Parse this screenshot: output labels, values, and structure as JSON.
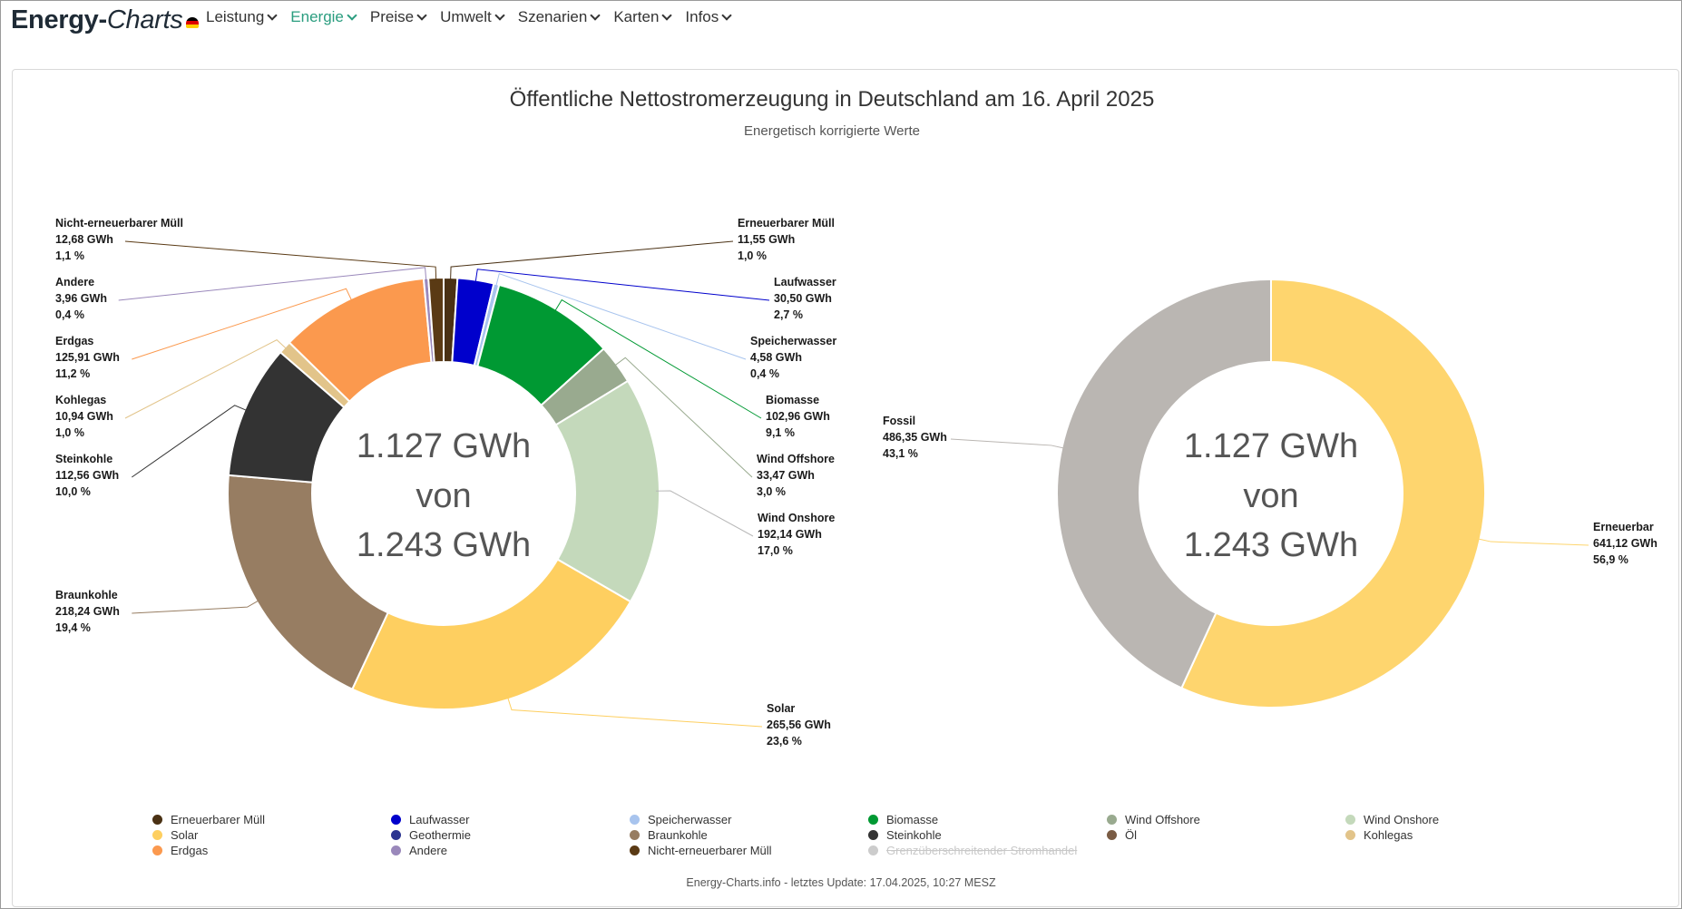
{
  "nav": {
    "brand_main": "Energy-",
    "brand_italic": "Charts",
    "items": [
      {
        "label": "Leistung",
        "active": false
      },
      {
        "label": "Energie",
        "active": true
      },
      {
        "label": "Preise",
        "active": false
      },
      {
        "label": "Umwelt",
        "active": false
      },
      {
        "label": "Szenarien",
        "active": false
      },
      {
        "label": "Karten",
        "active": false
      },
      {
        "label": "Infos",
        "active": false
      }
    ]
  },
  "footer": "Energy-Charts.info - letztes Update: 17.04.2025, 10:27 MESZ",
  "chart_data": [
    {
      "type": "pie",
      "title": "Öffentliche Nettostromerzeugung in Deutschland am 16. April 2025",
      "subtitle": "Energetisch korrigierte Werte",
      "center": [
        "1.127 GWh",
        "von",
        "1.243 GWh"
      ],
      "unit": "GWh",
      "slices": [
        {
          "name": "Erneuerbarer Müll",
          "value": 11.55,
          "value_label": "11,55 GWh",
          "percent_label": "1,0 %",
          "color": "#4a3114"
        },
        {
          "name": "Laufwasser",
          "value": 30.5,
          "value_label": "30,50 GWh",
          "percent_label": "2,7 %",
          "color": "#0000cc"
        },
        {
          "name": "Speicherwasser",
          "value": 4.58,
          "value_label": "4,58 GWh",
          "percent_label": "0,4 %",
          "color": "#a8c4ee"
        },
        {
          "name": "Biomasse",
          "value": 102.96,
          "value_label": "102,96 GWh",
          "percent_label": "9,1 %",
          "color": "#009933"
        },
        {
          "name": "Wind Offshore",
          "value": 33.47,
          "value_label": "33,47 GWh",
          "percent_label": "3,0 %",
          "color": "#99aa8f"
        },
        {
          "name": "Wind Onshore",
          "value": 192.14,
          "value_label": "192,14 GWh",
          "percent_label": "17,0 %",
          "color": "#c4d9bb"
        },
        {
          "name": "Solar",
          "value": 265.56,
          "value_label": "265,56 GWh",
          "percent_label": "23,6 %",
          "color": "#fecf60"
        },
        {
          "name": "Braunkohle",
          "value": 218.24,
          "value_label": "218,24 GWh",
          "percent_label": "19,4 %",
          "color": "#977d62"
        },
        {
          "name": "Steinkohle",
          "value": 112.56,
          "value_label": "112,56 GWh",
          "percent_label": "10,0 %",
          "color": "#333333"
        },
        {
          "name": "Kohlegas",
          "value": 10.94,
          "value_label": "10,94 GWh",
          "percent_label": "1,0 %",
          "color": "#e2c48a"
        },
        {
          "name": "Erdgas",
          "value": 125.91,
          "value_label": "125,91 GWh",
          "percent_label": "11,2 %",
          "color": "#fb994e"
        },
        {
          "name": "Andere",
          "value": 3.96,
          "value_label": "3,96 GWh",
          "percent_label": "0,4 %",
          "color": "#9a88bb"
        },
        {
          "name": "Nicht-erneuerbarer Müll",
          "value": 12.68,
          "value_label": "12,68 GWh",
          "percent_label": "1,1 %",
          "color": "#5a3a14"
        }
      ]
    },
    {
      "type": "pie",
      "center": [
        "1.127 GWh",
        "von",
        "1.243 GWh"
      ],
      "unit": "GWh",
      "slices": [
        {
          "name": "Erneuerbar",
          "value": 641.12,
          "value_label": "641,12 GWh",
          "percent_label": "56,9 %",
          "color": "#fed56e"
        },
        {
          "name": "Fossil",
          "value": 486.35,
          "value_label": "486,35 GWh",
          "percent_label": "43,1 %",
          "color": "#bab6b2"
        }
      ]
    }
  ],
  "legend": [
    {
      "name": "Erneuerbarer Müll",
      "color": "#4a3114",
      "disabled": false
    },
    {
      "name": "Laufwasser",
      "color": "#0000cc",
      "disabled": false
    },
    {
      "name": "Speicherwasser",
      "color": "#a8c4ee",
      "disabled": false
    },
    {
      "name": "Biomasse",
      "color": "#009933",
      "disabled": false
    },
    {
      "name": "Wind Offshore",
      "color": "#99aa8f",
      "disabled": false
    },
    {
      "name": "Wind Onshore",
      "color": "#c4d9bb",
      "disabled": false
    },
    {
      "name": "Solar",
      "color": "#fecf60",
      "disabled": false
    },
    {
      "name": "Geothermie",
      "color": "#2c3590",
      "disabled": false
    },
    {
      "name": "Braunkohle",
      "color": "#977d62",
      "disabled": false
    },
    {
      "name": "Steinkohle",
      "color": "#333333",
      "disabled": false
    },
    {
      "name": "Öl",
      "color": "#7a5c44",
      "disabled": false
    },
    {
      "name": "Kohlegas",
      "color": "#e2c48a",
      "disabled": false
    },
    {
      "name": "Erdgas",
      "color": "#fb994e",
      "disabled": false
    },
    {
      "name": "Andere",
      "color": "#9a88bb",
      "disabled": false
    },
    {
      "name": "Nicht-erneuerbarer Müll",
      "color": "#5a3a14",
      "disabled": false
    },
    {
      "name": "Grenzüberschreitender Stromhandel",
      "color": "#cccccc",
      "disabled": true
    }
  ]
}
